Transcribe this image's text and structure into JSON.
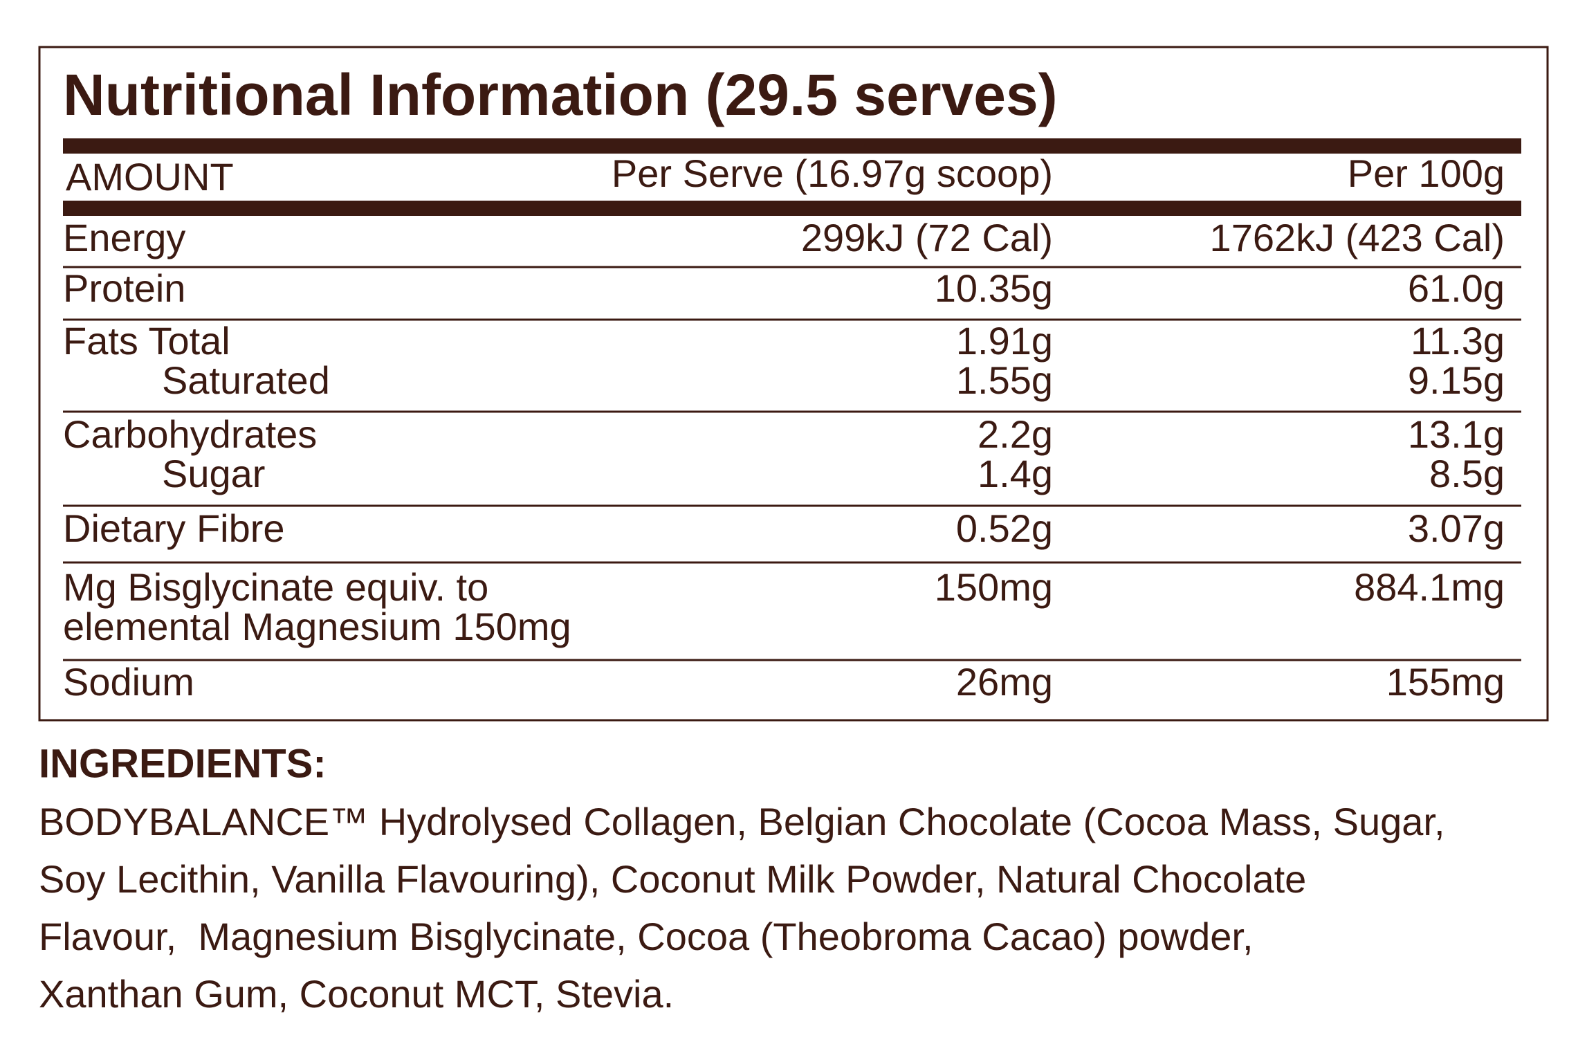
{
  "title": "Nutritional Information (29.5 serves)",
  "table": {
    "header": [
      "AMOUNT",
      "Per Serve (16.97g scoop)",
      "Per 100g"
    ],
    "groups": [
      {
        "rows": [
          [
            "Energy",
            "299kJ (72 Cal)",
            "1762kJ (423 Cal)"
          ]
        ]
      },
      {
        "rows": [
          [
            "Protein",
            "10.35g",
            "61.0g"
          ]
        ]
      },
      {
        "rows": [
          [
            "Fats Total",
            "1.91g",
            "11.3g"
          ],
          [
            "Saturated",
            "1.55g",
            "9.15g"
          ]
        ]
      },
      {
        "rows": [
          [
            "Carbohydrates",
            "2.2g",
            "13.1g"
          ],
          [
            "Sugar",
            "1.4g",
            "8.5g"
          ]
        ]
      },
      {
        "rows": [
          [
            "Dietary Fibre",
            "0.52g",
            "3.07g"
          ]
        ]
      },
      {
        "rows": [
          [
            "Mg Bisglycinate equiv. to",
            "150mg",
            "884.1mg"
          ],
          [
            "elemental Magnesium 150mg"
          ]
        ]
      },
      {
        "rows": [
          [
            "Sodium",
            "26mg",
            "155mg"
          ]
        ]
      }
    ]
  },
  "ingredients": {
    "heading": "INGREDIENTS:",
    "lines": [
      "BODYBALANCE™ Hydrolysed Collagen, Belgian Chocolate (Cocoa Mass, Sugar,",
      "Soy Lecithin, Vanilla Flavouring), Coconut Milk Powder, Natural Chocolate",
      "Flavour,  Magnesium Bisglycinate, Cocoa (Theobroma Cacao) powder,",
      "Xanthan Gum, Coconut MCT, Stevia."
    ]
  }
}
